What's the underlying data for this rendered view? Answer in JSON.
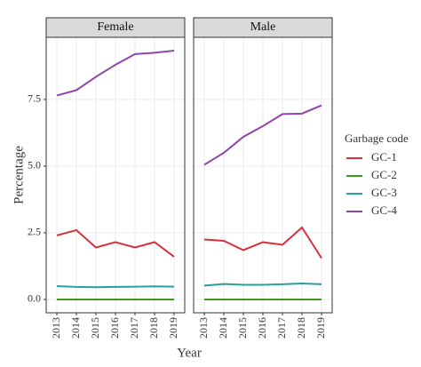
{
  "chart_data": {
    "type": "line",
    "xlabel": "Year",
    "ylabel": "Percentage",
    "legend_title": "Garbage code",
    "legend": "right",
    "grid": true,
    "x": [
      "2013",
      "2014",
      "2015",
      "2016",
      "2017",
      "2018",
      "2019"
    ],
    "ylim": [
      -0.5,
      9.83
    ],
    "yticks": [
      {
        "value": 0,
        "label": "0.0"
      },
      2.5,
      {
        "value": 5,
        "label": "5.0"
      },
      7.5
    ],
    "series": [
      {
        "name": "GC-1",
        "color": "#d7303b"
      },
      {
        "name": "GC-2",
        "color": "#3e9b1f"
      },
      {
        "name": "GC-3",
        "color": "#27a0a0"
      },
      {
        "name": "GC-4",
        "color": "#8e44ad"
      }
    ],
    "facets": [
      {
        "title": "Female",
        "values": [
          [
            2.4,
            2.6,
            1.95,
            2.15,
            1.95,
            2.15,
            1.6
          ],
          [
            0,
            0,
            0,
            0,
            0,
            0,
            0
          ],
          [
            0.5,
            0.47,
            0.46,
            0.47,
            0.48,
            0.49,
            0.48
          ],
          [
            7.65,
            7.85,
            8.35,
            8.8,
            9.2,
            9.25,
            9.33
          ]
        ]
      },
      {
        "title": "Male",
        "values": [
          [
            2.25,
            2.2,
            1.85,
            2.15,
            2.05,
            2.7,
            1.55
          ],
          [
            0,
            0,
            0,
            0,
            0,
            0,
            0
          ],
          [
            0.52,
            0.58,
            0.55,
            0.55,
            0.57,
            0.6,
            0.57
          ],
          [
            5.05,
            5.5,
            6.1,
            6.5,
            6.95,
            6.97,
            7.28
          ]
        ]
      }
    ]
  }
}
